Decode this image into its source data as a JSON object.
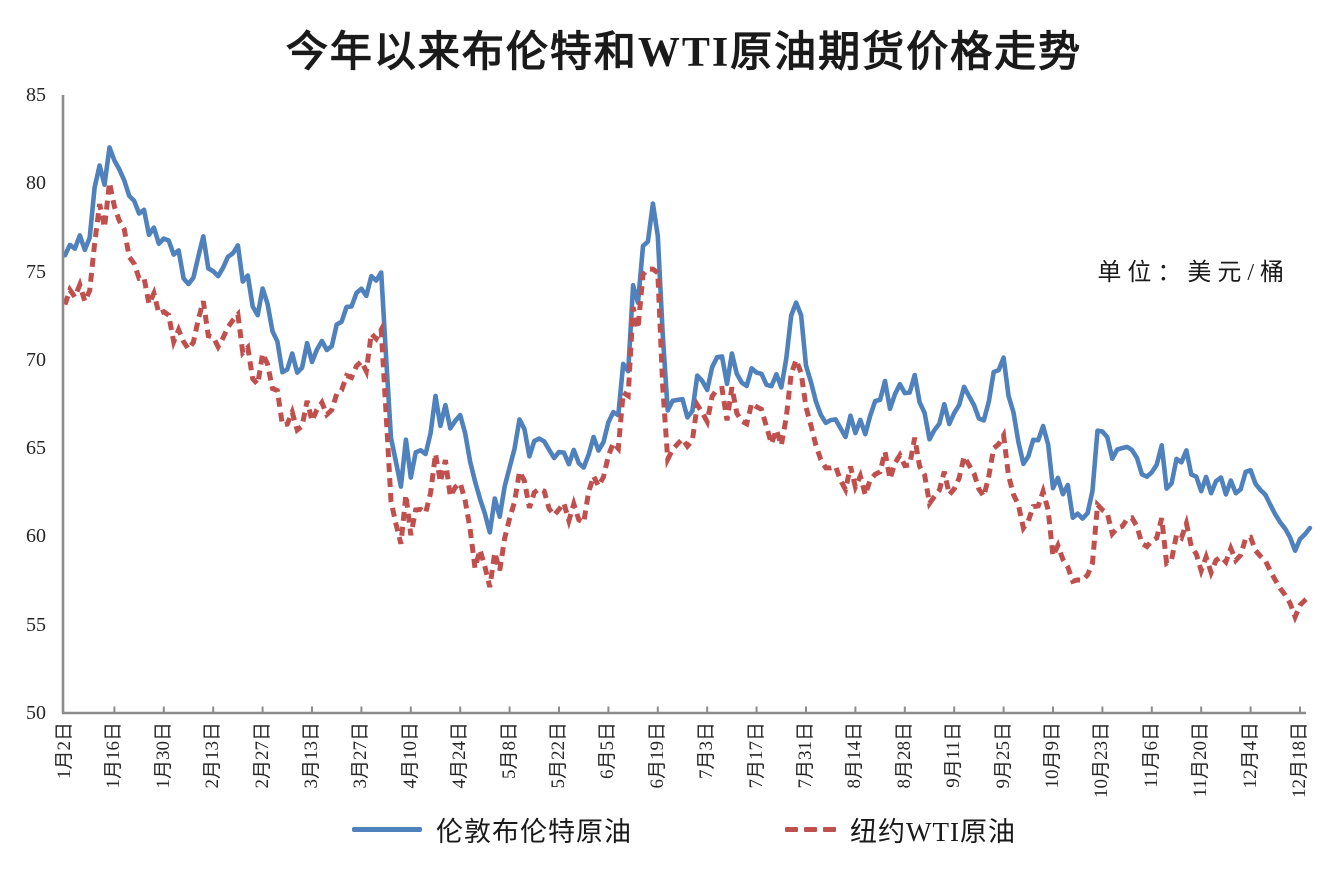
{
  "title": "今年以来布伦特和WTI原油期货价格走势",
  "unit_label": "单位：美元/桶",
  "legend": [
    {
      "label": "伦敦布伦特原油",
      "color": "#4F81BD",
      "style": "solid"
    },
    {
      "label": "纽约WTI原油",
      "color": "#C0504D",
      "style": "dashed"
    }
  ],
  "axis_color": "#8C8C8C",
  "chart_data": {
    "type": "line",
    "title": "今年以来布伦特和WTI原油期货价格走势",
    "ylabel": "美元/桶",
    "xlabel": "",
    "ylim": [
      50,
      85
    ],
    "ytick_step": 5,
    "grid": false,
    "legend_position": "bottom",
    "x_tick_labels": [
      "1月2日",
      "1月16日",
      "1月30日",
      "2月13日",
      "2月27日",
      "3月13日",
      "3月27日",
      "4月10日",
      "4月24日",
      "5月8日",
      "5月22日",
      "6月5日",
      "6月19日",
      "7月3日",
      "7月17日",
      "7月31日",
      "8月14日",
      "8月28日",
      "9月11日",
      "9月25日",
      "10月9日",
      "10月23日",
      "11月6日",
      "11月20日",
      "12月4日",
      "12月18日"
    ],
    "x_points_per_tick": 10,
    "series": [
      {
        "name": "伦敦布伦特原油",
        "color": "#4F81BD",
        "dash": "solid",
        "values": [
          75.93,
          76.51,
          76.3,
          77.05,
          76.23,
          76.92,
          79.76,
          81.01,
          79.92,
          82.03,
          81.29,
          80.79,
          80.15,
          79.29,
          79.0,
          78.29,
          78.5,
          77.08,
          77.49,
          76.58,
          76.87,
          76.76,
          75.96,
          76.2,
          74.61,
          74.29,
          74.66,
          75.87,
          77.0,
          75.18,
          75.02,
          74.74,
          75.22,
          75.84,
          76.04,
          76.48,
          74.43,
          74.78,
          73.02,
          72.53,
          74.04,
          73.18,
          71.62,
          71.04,
          69.3,
          69.46,
          70.36,
          69.28,
          69.56,
          70.95,
          69.88,
          70.58,
          71.07,
          70.56,
          70.78,
          72.0,
          72.16,
          73.0,
          73.02,
          73.79,
          74.03,
          73.63,
          74.74,
          74.49,
          74.95,
          70.14,
          65.58,
          64.21,
          62.82,
          65.48,
          63.33,
          64.76,
          64.88,
          64.67,
          65.85,
          67.96,
          66.26,
          67.44,
          66.12,
          66.55,
          66.87,
          65.86,
          64.25,
          63.12,
          62.13,
          61.29,
          60.23,
          62.15,
          61.12,
          62.84,
          63.91,
          64.96,
          66.63,
          66.09,
          64.53,
          65.41,
          65.54,
          65.38,
          64.91,
          64.44,
          64.78,
          64.74,
          64.09,
          64.9,
          64.15,
          63.9,
          64.63,
          65.63,
          64.86,
          65.34,
          66.47,
          67.04,
          66.87,
          69.77,
          69.36,
          74.23,
          73.23,
          76.45,
          76.7,
          78.85,
          77.01,
          71.48,
          67.14,
          67.68,
          67.73,
          67.77,
          66.74,
          67.11,
          69.11,
          68.8,
          68.3,
          69.58,
          70.15,
          70.19,
          68.64,
          70.36,
          69.21,
          68.71,
          68.52,
          69.52,
          69.28,
          69.21,
          68.59,
          68.51,
          69.18,
          68.44,
          70.04,
          72.51,
          73.24,
          72.53,
          69.67,
          68.76,
          67.64,
          66.89,
          66.43,
          66.59,
          66.63,
          66.12,
          65.63,
          66.84,
          65.85,
          66.6,
          65.79,
          66.84,
          67.67,
          67.73,
          68.8,
          67.22,
          68.05,
          68.62,
          68.12,
          68.15,
          69.14,
          67.6,
          66.99,
          65.5,
          66.02,
          66.39,
          67.49,
          66.37,
          66.99,
          67.44,
          68.47,
          67.95,
          67.44,
          66.68,
          66.57,
          67.63,
          69.31,
          69.42,
          70.13,
          67.97,
          67.02,
          65.35,
          64.11,
          64.53,
          65.47,
          65.45,
          66.25,
          65.22,
          62.73,
          63.32,
          62.39,
          62.91,
          61.06,
          61.29,
          61.01,
          61.32,
          62.59,
          65.99,
          65.94,
          65.62,
          64.4,
          64.92,
          65.0,
          65.07,
          64.89,
          64.44,
          63.52,
          63.38,
          63.63,
          64.06,
          65.16,
          62.71,
          63.01,
          64.39,
          64.2,
          64.87,
          63.51,
          63.38,
          62.56,
          63.37,
          62.45,
          63.13,
          63.34,
          62.38,
          63.17,
          62.45,
          62.67,
          63.66,
          63.75,
          62.98,
          62.63,
          62.36,
          61.78,
          61.25,
          60.8,
          60.43,
          59.94,
          59.19,
          59.85,
          60.12,
          60.48
        ]
      },
      {
        "name": "纽约WTI原油",
        "color": "#C0504D",
        "dash": "dashed",
        "values": [
          73.13,
          73.96,
          73.56,
          74.25,
          73.32,
          73.92,
          76.57,
          78.82,
          77.5,
          80.04,
          78.68,
          77.88,
          77.39,
          75.83,
          75.44,
          74.62,
          74.66,
          73.17,
          73.77,
          72.62,
          72.73,
          72.53,
          71.03,
          71.7,
          71.03,
          70.61,
          71.0,
          72.32,
          73.32,
          71.37,
          71.29,
          70.74,
          71.25,
          71.85,
          72.25,
          72.57,
          70.4,
          70.7,
          68.93,
          68.62,
          70.35,
          69.76,
          68.37,
          68.26,
          66.31,
          66.36,
          67.04,
          66.03,
          66.25,
          67.68,
          66.55,
          67.18,
          67.58,
          66.9,
          67.16,
          68.07,
          68.28,
          69.11,
          69.0,
          69.65,
          69.92,
          69.36,
          71.48,
          71.2,
          71.71,
          66.95,
          61.99,
          60.7,
          59.58,
          62.35,
          60.07,
          61.5,
          61.53,
          61.33,
          62.47,
          64.68,
          63.08,
          64.32,
          62.27,
          62.79,
          63.02,
          62.05,
          60.42,
          58.21,
          59.24,
          58.29,
          57.13,
          59.09,
          58.07,
          59.91,
          61.02,
          61.95,
          63.67,
          63.15,
          61.62,
          62.49,
          62.69,
          62.56,
          61.57,
          61.2,
          61.53,
          61.89,
          60.89,
          61.84,
          60.94,
          60.79,
          62.52,
          63.41,
          62.85,
          63.37,
          64.58,
          65.29,
          64.98,
          68.15,
          67.97,
          72.98,
          71.77,
          74.84,
          75.14,
          75.14,
          74.93,
          68.51,
          64.37,
          64.92,
          65.24,
          65.52,
          65.11,
          65.45,
          67.45,
          67.0,
          66.5,
          67.93,
          68.33,
          68.38,
          66.57,
          68.45,
          66.98,
          66.52,
          66.38,
          67.54,
          67.34,
          67.2,
          66.21,
          65.25,
          66.03,
          65.16,
          66.71,
          69.21,
          70.0,
          69.26,
          67.33,
          66.29,
          65.16,
          64.35,
          63.88,
          63.88,
          63.96,
          63.17,
          62.65,
          63.96,
          62.8,
          63.42,
          62.35,
          63.21,
          63.52,
          63.66,
          64.8,
          63.25,
          64.15,
          64.6,
          64.01,
          64.05,
          65.59,
          63.97,
          63.48,
          61.87,
          62.26,
          62.63,
          63.67,
          62.37,
          62.69,
          63.3,
          64.52,
          64.05,
          63.57,
          62.68,
          62.27,
          63.41,
          64.99,
          65.23,
          65.72,
          63.45,
          62.37,
          61.78,
          60.48,
          60.88,
          61.69,
          61.73,
          62.55,
          61.51,
          58.9,
          59.49,
          58.7,
          58.27,
          57.46,
          57.54,
          57.52,
          57.82,
          58.5,
          61.79,
          61.5,
          61.31,
          60.15,
          60.48,
          60.57,
          60.98,
          61.05,
          60.56,
          59.6,
          59.43,
          59.75,
          59.91,
          61.04,
          58.49,
          58.69,
          60.09,
          59.91,
          60.74,
          59.44,
          59.0,
          58.06,
          58.84,
          57.95,
          58.65,
          58.84,
          58.55,
          59.32,
          58.64,
          58.95,
          59.9,
          59.95,
          59.2,
          58.88,
          58.62,
          58.04,
          57.52,
          57.06,
          56.68,
          56.21,
          55.44,
          56.1,
          56.38,
          56.64
        ]
      }
    ]
  }
}
